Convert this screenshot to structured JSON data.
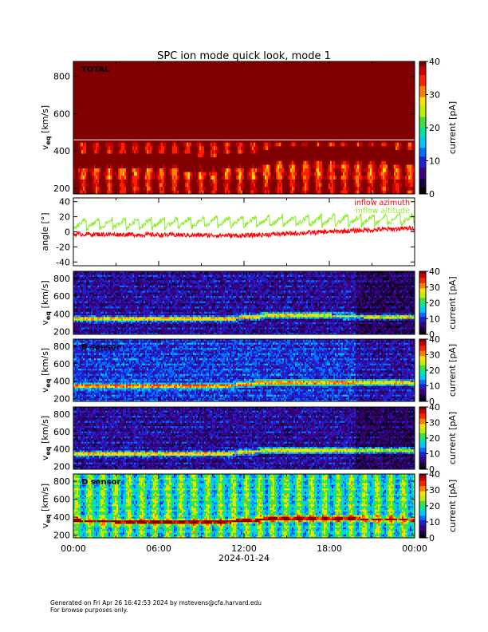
{
  "title": "SPC ion mode quick look, mode 1",
  "footer": {
    "generated": "Generated on Fri Apr 26 16:42:53 2024 by mstevens@cfa.harvard.edu",
    "note": "For browse purposes only."
  },
  "chart_data": [
    {
      "type": "heatmap",
      "panel": "total",
      "label": "TOTAL",
      "ylabel_main": "v",
      "ylabel_sub": "eq",
      "ylabel_unit": " [km/s]",
      "ylim": [
        170,
        880
      ],
      "yticks": [
        200,
        400,
        600,
        800
      ],
      "xlim_hours": [
        0,
        24
      ],
      "colorbar": {
        "label": "current [pA]",
        "range": [
          0,
          40
        ],
        "ticks": [
          0,
          10,
          20,
          30,
          40
        ]
      },
      "colormap": [
        "#000000",
        "#1a0040",
        "#3a0080",
        "#2020d0",
        "#0070ff",
        "#00c8ff",
        "#00e8a0",
        "#40e040",
        "#c0f000",
        "#ffe000",
        "#ff8000",
        "#ff2000",
        "#c80000",
        "#800000"
      ],
      "background_level": 14,
      "core_speed": [
        {
          "hour": 0,
          "v": 355
        },
        {
          "hour": 2,
          "v": 350
        },
        {
          "hour": 6,
          "v": 340
        },
        {
          "hour": 10,
          "v": 335
        },
        {
          "hour": 13.5,
          "v": 360
        },
        {
          "hour": 14,
          "v": 390
        },
        {
          "hour": 20,
          "v": 390
        },
        {
          "hour": 24,
          "v": 370
        }
      ]
    },
    {
      "type": "line",
      "panel": "angle",
      "ylabel": "angle [°]",
      "ylim": [
        -45,
        45
      ],
      "yticks": [
        -40,
        -20,
        0,
        20,
        40
      ],
      "xlim_hours": [
        0,
        24
      ],
      "series": [
        {
          "name": "inflow azimuth",
          "color": "#ff0000",
          "trend": [
            {
              "hour": 0,
              "v": -3
            },
            {
              "hour": 12,
              "v": -5
            },
            {
              "hour": 24,
              "v": 5
            }
          ]
        },
        {
          "name": "inflow altitude",
          "color": "#90ee30",
          "trend": [
            {
              "hour": 0,
              "v": 5
            },
            {
              "hour": 24,
              "v": 12
            }
          ]
        }
      ]
    },
    {
      "type": "heatmap",
      "panel": "sensor-a",
      "label": "",
      "ylabel_main": "v",
      "ylabel_sub": "eq",
      "ylabel_unit": " [km/s]",
      "ylim": [
        170,
        880
      ],
      "yticks": [
        200,
        400,
        600,
        800
      ],
      "colorbar": {
        "label": "current [pA]",
        "range": [
          0,
          40
        ],
        "ticks": [
          0,
          10,
          20,
          30,
          40
        ]
      },
      "background_level": 2,
      "core_speed": [
        {
          "hour": 0,
          "v": 355
        },
        {
          "hour": 10,
          "v": 340
        },
        {
          "hour": 14,
          "v": 385
        },
        {
          "hour": 24,
          "v": 370
        }
      ]
    },
    {
      "type": "heatmap",
      "panel": "sensor-b",
      "label": "B sensor",
      "ylabel_main": "v",
      "ylabel_sub": "eq",
      "ylabel_unit": " [km/s]",
      "ylim": [
        170,
        880
      ],
      "yticks": [
        200,
        400,
        600,
        800
      ],
      "colorbar": {
        "label": "current [pA]",
        "range": [
          0,
          40
        ],
        "ticks": [
          0,
          10,
          20,
          30,
          40
        ]
      },
      "background_level": 3,
      "core_speed": [
        {
          "hour": 0,
          "v": 355
        },
        {
          "hour": 10,
          "v": 340
        },
        {
          "hour": 14,
          "v": 395
        },
        {
          "hour": 24,
          "v": 380
        }
      ]
    },
    {
      "type": "heatmap",
      "panel": "sensor-c",
      "label": "",
      "ylabel_main": "v",
      "ylabel_sub": "eq",
      "ylabel_unit": " [km/s]",
      "ylim": [
        170,
        880
      ],
      "yticks": [
        200,
        400,
        600,
        800
      ],
      "colorbar": {
        "label": "current [pA]",
        "range": [
          0,
          40
        ],
        "ticks": [
          0,
          10,
          20,
          30,
          40
        ]
      },
      "background_level": 2,
      "core_speed": [
        {
          "hour": 0,
          "v": 350
        },
        {
          "hour": 10,
          "v": 340
        },
        {
          "hour": 14,
          "v": 390
        },
        {
          "hour": 24,
          "v": 380
        }
      ]
    },
    {
      "type": "heatmap",
      "panel": "sensor-d",
      "label": "D sensor",
      "ylabel_main": "v",
      "ylabel_sub": "eq",
      "ylabel_unit": " [km/s]",
      "ylim": [
        170,
        880
      ],
      "yticks": [
        200,
        400,
        600,
        800
      ],
      "colorbar": {
        "label": "current [pA]",
        "range": [
          0,
          40
        ],
        "ticks": [
          0,
          10,
          20,
          30,
          40
        ]
      },
      "background_level": 6,
      "core_speed": [
        {
          "hour": 0,
          "v": 360
        },
        {
          "hour": 10,
          "v": 345
        },
        {
          "hour": 14,
          "v": 385
        },
        {
          "hour": 24,
          "v": 375
        }
      ]
    }
  ],
  "x_axis": {
    "ticks": [
      {
        "hour": 0,
        "label": "00:00"
      },
      {
        "hour": 6,
        "label": "06:00"
      },
      {
        "hour": 12,
        "label": "12:00"
      },
      {
        "hour": 18,
        "label": "18:00"
      },
      {
        "hour": 24,
        "label": "00:00"
      }
    ],
    "date_label": "2024-01-24"
  }
}
